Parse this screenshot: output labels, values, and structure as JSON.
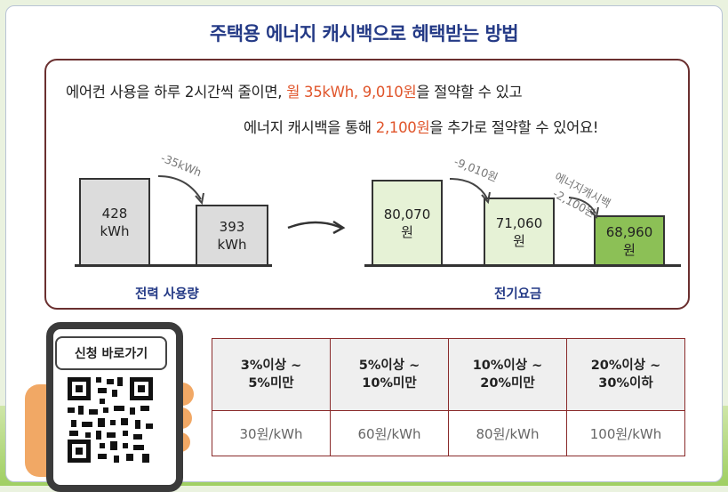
{
  "title": "주택용 에너지 캐시백으로 혜택받는 방법",
  "intro": {
    "line1_a": "에어컨 사용을 하루 2시간씩 줄이면,",
    "line1_hl": "월 35kWh, 9,010원",
    "line1_b": "을 절약할 수 있고",
    "line2_a": "에너지 캐시백을 통해",
    "line2_hl": "2,100원",
    "line2_b": "을 추가로 절약할 수 있어요!"
  },
  "power": {
    "before": "428\nkWh",
    "after": "393\nkWh",
    "delta": "-35kWh",
    "caption": "전력 사용량"
  },
  "bill": {
    "before": "80,070\n원",
    "mid": "71,060\n원",
    "after": "68,960\n원",
    "delta1": "-9,010원",
    "delta2_a": "에너지캐시백",
    "delta2_b": "-2,100원",
    "caption": "전기요금"
  },
  "apply_label": "신청 바로가기",
  "rates": {
    "headers": [
      "3%이상 ~\n5%미만",
      "5%이상 ~\n10%미만",
      "10%이상 ~\n20%미만",
      "20%이상 ~\n30%이하"
    ],
    "values": [
      "30원/kWh",
      "60원/kWh",
      "80원/kWh",
      "100원/kWh"
    ]
  },
  "colors": {
    "accent": "#e0552b",
    "title": "#243a86",
    "border": "#6a2f2f",
    "cashback_bar": "#8cc056"
  }
}
